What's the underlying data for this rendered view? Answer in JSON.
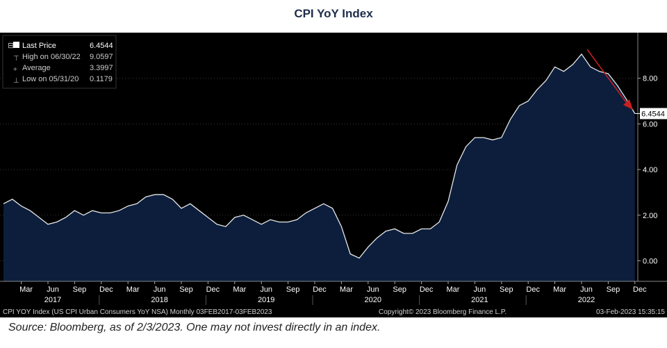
{
  "page_title": "CPI YoY Index",
  "source_note": "Source: Bloomberg, as of 2/3/2023. One may not invest directly in an index.",
  "legend": {
    "rows": [
      {
        "label": "Last Price",
        "value": "6.4544"
      },
      {
        "label": "High on 06/30/22",
        "value": "9.0597"
      },
      {
        "label": "Average",
        "value": "3.3997"
      },
      {
        "label": "Low on 05/31/20",
        "value": "0.1179"
      }
    ]
  },
  "footer": {
    "left": "CPI YOY Index (US CPI Urban Consumers YoY NSA)  Monthly 03FEB2017-03FEB2023",
    "center": "Copyright© 2023 Bloomberg Finance L.P.",
    "right": "03-Feb-2023  15:35:15"
  },
  "last_price_label": "6.4544",
  "colors": {
    "background": "#000000",
    "area_fill": "#0c1e3c",
    "line": "#e8e8e8",
    "arrow": "#cc1f1f",
    "grid": "#3a3a3a"
  },
  "chart_data": {
    "type": "area",
    "title": "CPI YoY Index",
    "ylim": [
      -0.9,
      10.0
    ],
    "y_ticks": [
      "0.00",
      "2.00",
      "4.00",
      "6.00",
      "8.00"
    ],
    "y_tick_values": [
      0,
      2,
      4,
      6,
      8
    ],
    "grid": true,
    "x_month_labels": [
      "Mar",
      "Jun",
      "Sep",
      "Dec",
      "Mar",
      "Jun",
      "Sep",
      "Dec",
      "Mar",
      "Jun",
      "Sep",
      "Dec",
      "Mar",
      "Jun",
      "Sep",
      "Dec",
      "Mar",
      "Jun",
      "Sep",
      "Dec",
      "Mar",
      "Jun",
      "Sep",
      "Dec"
    ],
    "x_year_labels": [
      "2017",
      "2018",
      "2019",
      "2020",
      "2021",
      "2022"
    ],
    "series": [
      {
        "x": [
          "2017-01",
          "2017-02",
          "2017-03",
          "2017-04",
          "2017-05",
          "2017-06",
          "2017-07",
          "2017-08",
          "2017-09",
          "2017-10",
          "2017-11",
          "2017-12",
          "2018-01",
          "2018-02",
          "2018-03",
          "2018-04",
          "2018-05",
          "2018-06",
          "2018-07",
          "2018-08",
          "2018-09",
          "2018-10",
          "2018-11",
          "2018-12",
          "2019-01",
          "2019-02",
          "2019-03",
          "2019-04",
          "2019-05",
          "2019-06",
          "2019-07",
          "2019-08",
          "2019-09",
          "2019-10",
          "2019-11",
          "2019-12",
          "2020-01",
          "2020-02",
          "2020-03",
          "2020-04",
          "2020-05",
          "2020-06",
          "2020-07",
          "2020-08",
          "2020-09",
          "2020-10",
          "2020-11",
          "2020-12",
          "2021-01",
          "2021-02",
          "2021-03",
          "2021-04",
          "2021-05",
          "2021-06",
          "2021-07",
          "2021-08",
          "2021-09",
          "2021-10",
          "2021-11",
          "2021-12",
          "2022-01",
          "2022-02",
          "2022-03",
          "2022-04",
          "2022-05",
          "2022-06",
          "2022-07",
          "2022-08",
          "2022-09",
          "2022-10",
          "2022-11",
          "2022-12"
        ],
        "values": [
          2.5,
          2.7,
          2.4,
          2.2,
          1.9,
          1.6,
          1.7,
          1.9,
          2.2,
          2.0,
          2.2,
          2.1,
          2.1,
          2.2,
          2.4,
          2.5,
          2.8,
          2.9,
          2.9,
          2.7,
          2.3,
          2.5,
          2.2,
          1.9,
          1.6,
          1.5,
          1.9,
          2.0,
          1.8,
          1.6,
          1.8,
          1.7,
          1.7,
          1.8,
          2.1,
          2.3,
          2.5,
          2.3,
          1.5,
          0.3,
          0.1179,
          0.6,
          1.0,
          1.3,
          1.4,
          1.2,
          1.2,
          1.4,
          1.4,
          1.7,
          2.6,
          4.2,
          5.0,
          5.4,
          5.4,
          5.3,
          5.4,
          6.2,
          6.8,
          7.0,
          7.5,
          7.9,
          8.5,
          8.3,
          8.6,
          9.0597,
          8.5,
          8.3,
          8.2,
          7.7,
          7.1,
          6.4544
        ]
      }
    ]
  }
}
